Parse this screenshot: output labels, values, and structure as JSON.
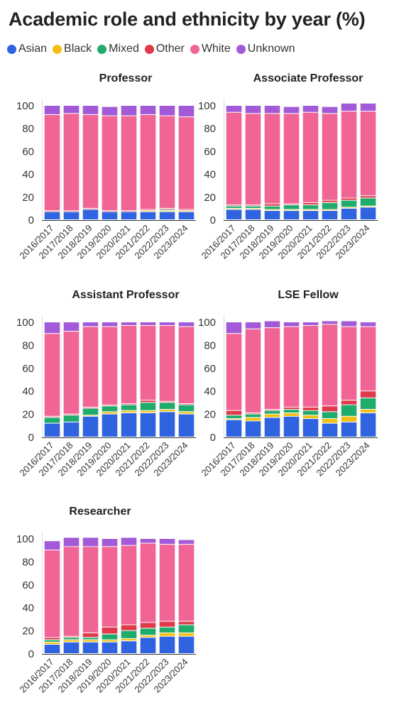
{
  "title": "Academic role and ethnicity by year (%)",
  "legend": [
    {
      "name": "Asian",
      "color": "#2f63e0"
    },
    {
      "name": "Black",
      "color": "#f2c014"
    },
    {
      "name": "Mixed",
      "color": "#1fab6b"
    },
    {
      "name": "Other",
      "color": "#e03a4a"
    },
    {
      "name": "White",
      "color": "#f06595"
    },
    {
      "name": "Unknown",
      "color": "#a25ad8"
    }
  ],
  "chart_data": [
    {
      "type": "bar",
      "stacked": true,
      "title": "Professor",
      "categories": [
        "2016/2017",
        "2017/2018",
        "2018/2019",
        "2019/2020",
        "2020/2021",
        "2021/2022",
        "2022/2023",
        "2023/2024"
      ],
      "series": [
        {
          "name": "Asian",
          "values": [
            7,
            7,
            9,
            7,
            7,
            7,
            7,
            7
          ]
        },
        {
          "name": "Black",
          "values": [
            0,
            0,
            0,
            0,
            0,
            1,
            1,
            1
          ]
        },
        {
          "name": "Mixed",
          "values": [
            0,
            0,
            0,
            0,
            0,
            0,
            1,
            0
          ]
        },
        {
          "name": "Other",
          "values": [
            1,
            1,
            1,
            1,
            1,
            1,
            1,
            1
          ]
        },
        {
          "name": "White",
          "values": [
            84,
            85,
            82,
            83,
            83,
            83,
            81,
            81
          ]
        },
        {
          "name": "Unknown",
          "values": [
            8,
            7,
            8,
            8,
            9,
            8,
            9,
            10
          ]
        }
      ],
      "yticks": [
        0,
        20,
        40,
        60,
        80,
        100
      ],
      "ylim": [
        0,
        100
      ]
    },
    {
      "type": "bar",
      "stacked": true,
      "title": "Associate Professor",
      "categories": [
        "2016/2017",
        "2017/2018",
        "2018/2019",
        "2019/2020",
        "2020/2021",
        "2021/2022",
        "2022/2023",
        "2023/2024"
      ],
      "series": [
        {
          "name": "Asian",
          "values": [
            9,
            9,
            8,
            8,
            8,
            8,
            10,
            11
          ]
        },
        {
          "name": "Black",
          "values": [
            1,
            1,
            1,
            1,
            1,
            1,
            1,
            1
          ]
        },
        {
          "name": "Mixed",
          "values": [
            2,
            2,
            3,
            4,
            4,
            6,
            6,
            7
          ]
        },
        {
          "name": "Other",
          "values": [
            1,
            1,
            2,
            1,
            2,
            2,
            2,
            2
          ]
        },
        {
          "name": "White",
          "values": [
            81,
            80,
            79,
            79,
            79,
            76,
            76,
            74
          ]
        },
        {
          "name": "Unknown",
          "values": [
            6,
            7,
            7,
            6,
            6,
            6,
            7,
            7
          ]
        }
      ],
      "yticks": [
        0,
        20,
        40,
        60,
        80,
        100
      ],
      "ylim": [
        0,
        100
      ]
    },
    {
      "type": "bar",
      "stacked": true,
      "title": "Assistant Professor",
      "categories": [
        "2016/2017",
        "2017/2018",
        "2018/2019",
        "2019/2020",
        "2020/2021",
        "2021/2022",
        "2022/2023",
        "2023/2024"
      ],
      "series": [
        {
          "name": "Asian",
          "values": [
            12,
            13,
            18,
            20,
            21,
            21,
            22,
            20
          ]
        },
        {
          "name": "Black",
          "values": [
            0,
            0,
            1,
            2,
            2,
            2,
            2,
            2
          ]
        },
        {
          "name": "Mixed",
          "values": [
            5,
            6,
            6,
            5,
            5,
            7,
            6,
            6
          ]
        },
        {
          "name": "Other",
          "values": [
            1,
            1,
            1,
            1,
            1,
            2,
            1,
            1
          ]
        },
        {
          "name": "White",
          "values": [
            72,
            72,
            70,
            68,
            68,
            65,
            66,
            67
          ]
        },
        {
          "name": "Unknown",
          "values": [
            10,
            8,
            4,
            4,
            3,
            3,
            3,
            4
          ]
        }
      ],
      "yticks": [
        0,
        20,
        40,
        60,
        80,
        100
      ],
      "ylim": [
        0,
        100
      ]
    },
    {
      "type": "bar",
      "stacked": true,
      "title": "LSE Fellow",
      "categories": [
        "2016/2017",
        "2017/2018",
        "2018/2019",
        "2019/2020",
        "2020/2021",
        "2021/2022",
        "2022/2023",
        "2023/2024"
      ],
      "series": [
        {
          "name": "Asian",
          "values": [
            15,
            14,
            17,
            18,
            16,
            12,
            13,
            21
          ]
        },
        {
          "name": "Black",
          "values": [
            1,
            3,
            3,
            3,
            3,
            4,
            5,
            3
          ]
        },
        {
          "name": "Mixed",
          "values": [
            3,
            3,
            3,
            3,
            4,
            6,
            10,
            10
          ]
        },
        {
          "name": "Other",
          "values": [
            4,
            1,
            1,
            2,
            3,
            5,
            4,
            6
          ]
        },
        {
          "name": "White",
          "values": [
            67,
            73,
            71,
            70,
            71,
            71,
            64,
            56
          ]
        },
        {
          "name": "Unknown",
          "values": [
            10,
            6,
            6,
            4,
            3,
            3,
            5,
            4
          ]
        }
      ],
      "yticks": [
        0,
        20,
        40,
        60,
        80,
        100
      ],
      "ylim": [
        0,
        100
      ]
    },
    {
      "type": "bar",
      "stacked": true,
      "title": "Researcher",
      "categories": [
        "2016/2017",
        "2017/2018",
        "2018/2019",
        "2019/2020",
        "2020/2021",
        "2021/2022",
        "2022/2023",
        "2023/2024"
      ],
      "series": [
        {
          "name": "Asian",
          "values": [
            8,
            10,
            10,
            10,
            11,
            14,
            15,
            15
          ]
        },
        {
          "name": "Black",
          "values": [
            2,
            2,
            2,
            2,
            2,
            2,
            3,
            3
          ]
        },
        {
          "name": "Mixed",
          "values": [
            2,
            2,
            2,
            5,
            7,
            6,
            5,
            7
          ]
        },
        {
          "name": "Other",
          "values": [
            2,
            1,
            4,
            6,
            5,
            5,
            5,
            3
          ]
        },
        {
          "name": "White",
          "values": [
            76,
            78,
            75,
            70,
            69,
            69,
            67,
            67
          ]
        },
        {
          "name": "Unknown",
          "values": [
            8,
            8,
            8,
            7,
            7,
            4,
            5,
            4
          ]
        }
      ],
      "yticks": [
        0,
        20,
        40,
        60,
        80,
        100
      ],
      "ylim": [
        0,
        100
      ]
    }
  ]
}
